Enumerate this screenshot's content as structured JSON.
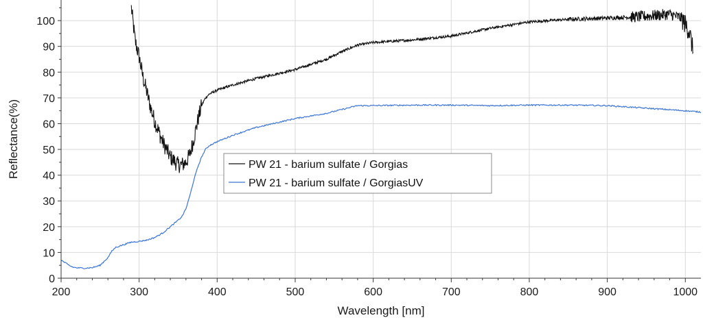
{
  "chart_data": {
    "type": "line",
    "xlabel": "Wavelength [nm]",
    "ylabel": "Reflectance(%)",
    "xlim": [
      200,
      1020
    ],
    "ylim": [
      0,
      108
    ],
    "xticks": [
      200,
      300,
      400,
      500,
      600,
      700,
      800,
      900,
      1000
    ],
    "yticks": [
      0,
      10,
      20,
      30,
      40,
      50,
      60,
      70,
      80,
      90,
      100
    ],
    "x_minor_step": 20,
    "grid": true,
    "legend_position": "center",
    "series": [
      {
        "name": "PW 21 - barium sulfate / Gorgias",
        "color": "#111111",
        "noisy": true,
        "points": [
          [
            290,
            105
          ],
          [
            295,
            92
          ],
          [
            300,
            86
          ],
          [
            305,
            78
          ],
          [
            310,
            72
          ],
          [
            315,
            66
          ],
          [
            320,
            61
          ],
          [
            325,
            57
          ],
          [
            330,
            53
          ],
          [
            335,
            50
          ],
          [
            340,
            47
          ],
          [
            345,
            45.5
          ],
          [
            350,
            44
          ],
          [
            355,
            44
          ],
          [
            360,
            45
          ],
          [
            365,
            48
          ],
          [
            370,
            54
          ],
          [
            375,
            61
          ],
          [
            380,
            67
          ],
          [
            385,
            70
          ],
          [
            390,
            71.5
          ],
          [
            400,
            73
          ],
          [
            420,
            75
          ],
          [
            450,
            77.5
          ],
          [
            500,
            81
          ],
          [
            540,
            85
          ],
          [
            560,
            88
          ],
          [
            580,
            90.5
          ],
          [
            600,
            91.5
          ],
          [
            650,
            92.5
          ],
          [
            700,
            94
          ],
          [
            750,
            97
          ],
          [
            800,
            99.5
          ],
          [
            850,
            100.5
          ],
          [
            900,
            101
          ],
          [
            940,
            101.5
          ],
          [
            960,
            102
          ],
          [
            980,
            102.5
          ],
          [
            995,
            101
          ],
          [
            1005,
            96
          ],
          [
            1010,
            88
          ]
        ]
      },
      {
        "name": "PW 21 - barium sulfate / GorgiasUV",
        "color": "#3a74d6",
        "noisy": false,
        "points": [
          [
            200,
            7
          ],
          [
            205,
            6
          ],
          [
            210,
            5
          ],
          [
            215,
            4.3
          ],
          [
            220,
            4
          ],
          [
            230,
            3.9
          ],
          [
            240,
            4.1
          ],
          [
            250,
            5
          ],
          [
            260,
            8
          ],
          [
            265,
            10.5
          ],
          [
            270,
            12
          ],
          [
            280,
            13
          ],
          [
            290,
            14
          ],
          [
            300,
            14.3
          ],
          [
            310,
            14.8
          ],
          [
            320,
            15.8
          ],
          [
            330,
            17.5
          ],
          [
            340,
            20
          ],
          [
            350,
            22.5
          ],
          [
            355,
            24
          ],
          [
            360,
            27
          ],
          [
            365,
            32
          ],
          [
            370,
            38
          ],
          [
            375,
            43
          ],
          [
            380,
            47
          ],
          [
            385,
            50
          ],
          [
            390,
            51.5
          ],
          [
            400,
            53
          ],
          [
            420,
            55.5
          ],
          [
            450,
            58.5
          ],
          [
            500,
            62
          ],
          [
            540,
            64
          ],
          [
            560,
            65.5
          ],
          [
            580,
            67
          ],
          [
            600,
            67
          ],
          [
            650,
            67.2
          ],
          [
            700,
            67.2
          ],
          [
            750,
            67
          ],
          [
            800,
            67.2
          ],
          [
            850,
            67.2
          ],
          [
            900,
            67
          ],
          [
            950,
            66
          ],
          [
            1000,
            65
          ],
          [
            1020,
            64.5
          ]
        ]
      }
    ]
  }
}
